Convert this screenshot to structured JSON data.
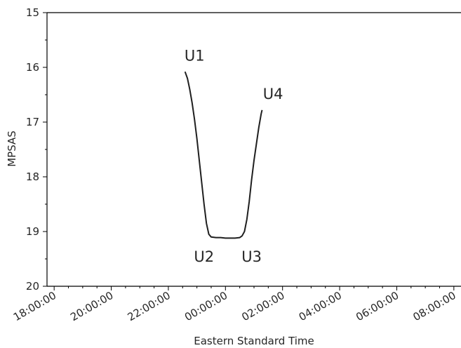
{
  "chart_data": {
    "type": "line",
    "title": "",
    "xlabel": "Eastern Standard Time",
    "ylabel": "MPSAS",
    "ylim": [
      15,
      20
    ],
    "y_inverted": true,
    "xlim": [
      "17:45:00",
      "08:15:00"
    ],
    "x_ticks": [
      "18:00:00",
      "20:00:00",
      "22:00:00",
      "00:00:00",
      "02:00:00",
      "04:00:00",
      "06:00:00",
      "08:00:00"
    ],
    "y_ticks": [
      "15",
      "16",
      "17",
      "18",
      "19",
      "20"
    ],
    "grid": false,
    "series": [
      {
        "color": "#1f1f1f",
        "points": [
          {
            "x": "22:35:00",
            "y": 16.08
          },
          {
            "x": "22:40:00",
            "y": 16.2
          },
          {
            "x": "22:45:00",
            "y": 16.4
          },
          {
            "x": "22:50:00",
            "y": 16.65
          },
          {
            "x": "22:55:00",
            "y": 16.95
          },
          {
            "x": "23:00:00",
            "y": 17.3
          },
          {
            "x": "23:05:00",
            "y": 17.7
          },
          {
            "x": "23:10:00",
            "y": 18.1
          },
          {
            "x": "23:15:00",
            "y": 18.5
          },
          {
            "x": "23:20:00",
            "y": 18.85
          },
          {
            "x": "23:25:00",
            "y": 19.05
          },
          {
            "x": "23:30:00",
            "y": 19.1
          },
          {
            "x": "23:40:00",
            "y": 19.11
          },
          {
            "x": "23:50:00",
            "y": 19.11
          },
          {
            "x": "00:00:00",
            "y": 19.12
          },
          {
            "x": "00:10:00",
            "y": 19.12
          },
          {
            "x": "00:20:00",
            "y": 19.12
          },
          {
            "x": "00:30:00",
            "y": 19.11
          },
          {
            "x": "00:35:00",
            "y": 19.08
          },
          {
            "x": "00:40:00",
            "y": 19.0
          },
          {
            "x": "00:45:00",
            "y": 18.78
          },
          {
            "x": "00:50:00",
            "y": 18.45
          },
          {
            "x": "00:55:00",
            "y": 18.05
          },
          {
            "x": "01:00:00",
            "y": 17.7
          },
          {
            "x": "01:05:00",
            "y": 17.4
          },
          {
            "x": "01:10:00",
            "y": 17.1
          },
          {
            "x": "01:15:00",
            "y": 16.85
          },
          {
            "x": "01:17:00",
            "y": 16.78
          }
        ]
      }
    ],
    "annotations": [
      {
        "text": "U1",
        "x": "22:55:00",
        "y": 15.88
      },
      {
        "text": "U2",
        "x": "23:15:00",
        "y": 19.55
      },
      {
        "text": "U3",
        "x": "00:55:00",
        "y": 19.55
      },
      {
        "text": "U4",
        "x": "01:40:00",
        "y": 16.58
      }
    ]
  }
}
